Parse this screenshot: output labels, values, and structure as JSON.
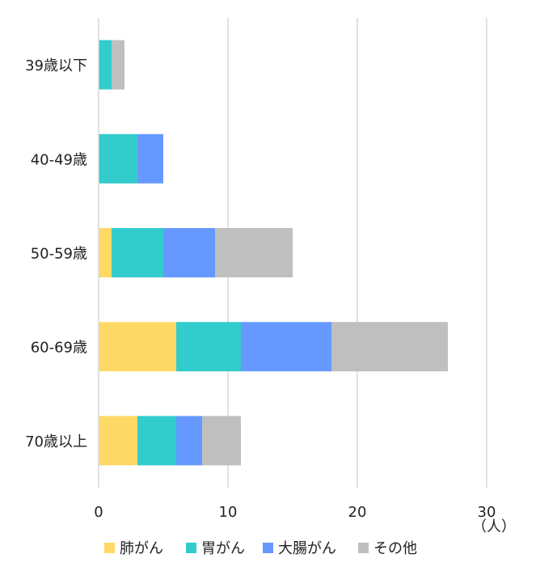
{
  "chart_data": {
    "type": "bar",
    "orientation": "horizontal",
    "stacked": true,
    "categories": [
      "39歳以下",
      "40-49歳",
      "50-59歳",
      "60-69歳",
      "70歳以上"
    ],
    "series": [
      {
        "name": "肺がん",
        "color": "#FFD966",
        "values": [
          0,
          0,
          1,
          6,
          3
        ]
      },
      {
        "name": "胃がん",
        "color": "#33CCCC",
        "values": [
          1,
          3,
          4,
          5,
          3
        ]
      },
      {
        "name": "大腸がん",
        "color": "#6699FF",
        "values": [
          0,
          2,
          4,
          7,
          2
        ]
      },
      {
        "name": "その他",
        "color": "#BFBFBF",
        "values": [
          1,
          0,
          6,
          9,
          3
        ]
      }
    ],
    "xlim": [
      0,
      30
    ],
    "xticks": [
      0,
      10,
      20,
      30
    ],
    "unit": "（人）",
    "grid": true,
    "legend_position": "bottom"
  }
}
